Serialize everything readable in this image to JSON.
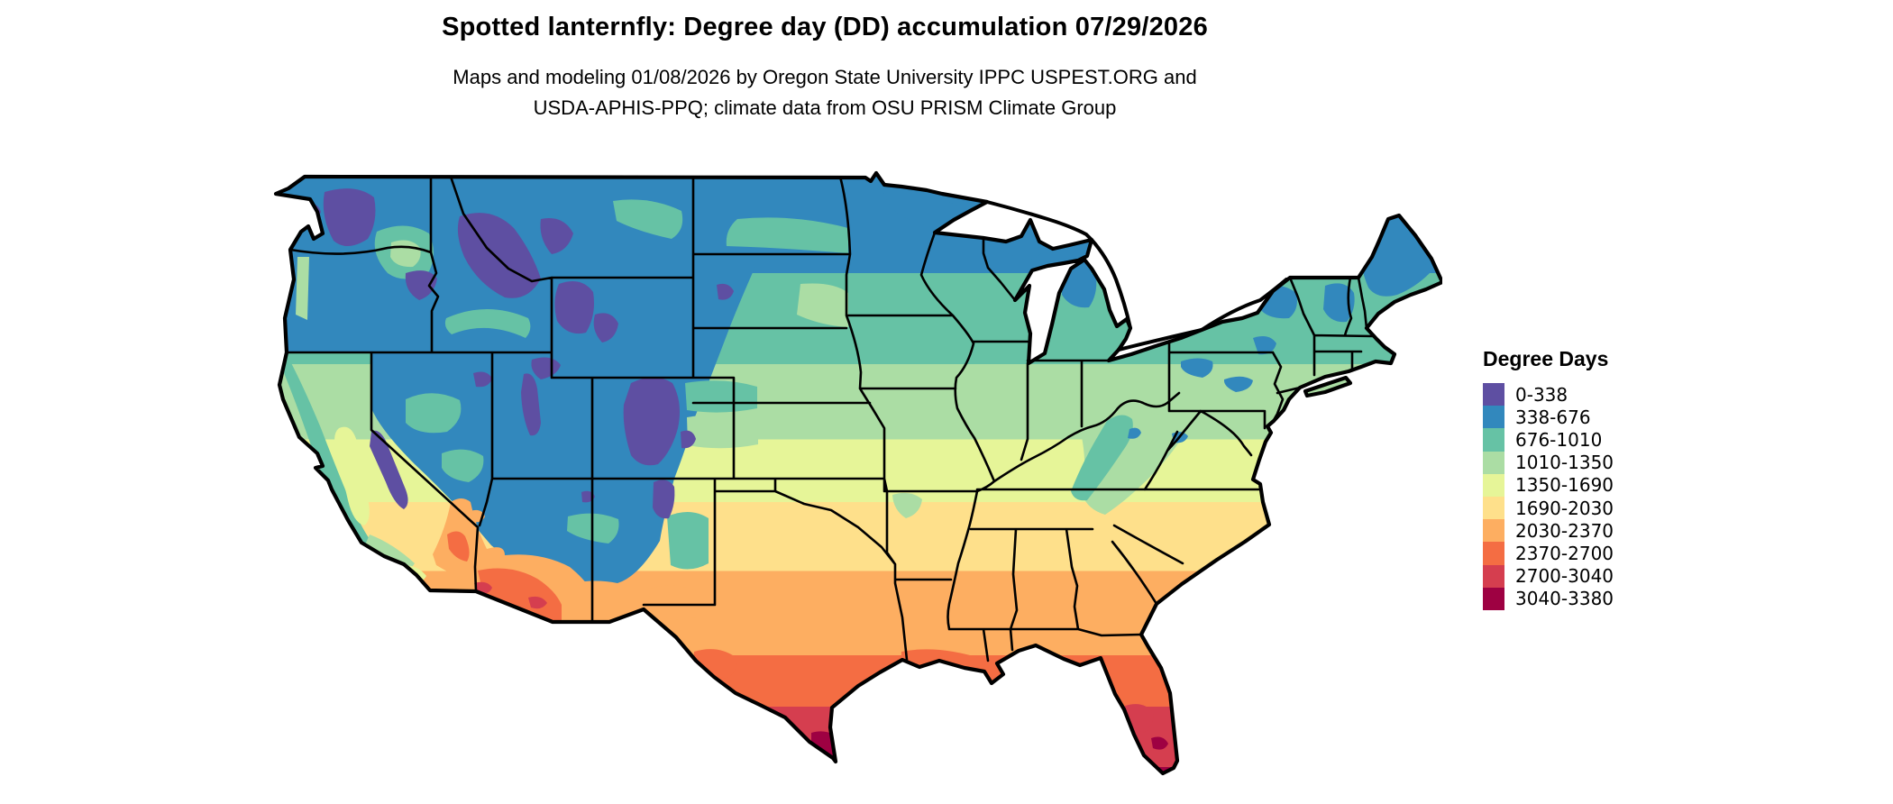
{
  "header": {
    "title": "Spotted lanternfly: Degree day (DD) accumulation 07/29/2026",
    "subtitle_line1": "Maps and modeling 01/08/2026 by Oregon State University IPPC USPEST.ORG and",
    "subtitle_line2": "USDA-APHIS-PPQ; climate data from OSU PRISM Climate Group"
  },
  "legend": {
    "title": "Degree Days",
    "classes": [
      {
        "range": "0-338",
        "color": "#5e4fa2"
      },
      {
        "range": "338-676",
        "color": "#3288bd"
      },
      {
        "range": "676-1010",
        "color": "#66c2a5"
      },
      {
        "range": "1010-1350",
        "color": "#abdda4"
      },
      {
        "range": "1350-1690",
        "color": "#e6f598"
      },
      {
        "range": "1690-2030",
        "color": "#fee08b"
      },
      {
        "range": "2030-2370",
        "color": "#fdae61"
      },
      {
        "range": "2370-2700",
        "color": "#f46d43"
      },
      {
        "range": "2700-3040",
        "color": "#d53e4f"
      },
      {
        "range": "3040-3380",
        "color": "#9e0142"
      }
    ]
  },
  "map": {
    "region": "Conterminous United States",
    "type": "classed raster choropleth with state borders",
    "border_color": "#000000",
    "water_color": "#ffffff"
  },
  "chart_data": {
    "type": "heatmap",
    "subtype": "choropleth-map",
    "title": "Spotted lanternfly: Degree day (DD) accumulation 07/29/2026",
    "legend_title": "Degree Days",
    "legend_position": "right",
    "unit": "accumulated degree days (DD)",
    "classes": [
      "0-338",
      "338-676",
      "676-1010",
      "1010-1350",
      "1350-1690",
      "1690-2030",
      "2030-2370",
      "2370-2700",
      "2700-3040",
      "3040-3380"
    ],
    "class_colors": [
      "#5e4fa2",
      "#3288bd",
      "#66c2a5",
      "#abdda4",
      "#e6f598",
      "#fee08b",
      "#fdae61",
      "#f46d43",
      "#d53e4f",
      "#9e0142"
    ],
    "pattern": "DD accumulation increases from north to south: 0-676 DD (purple/blue) across the northern tier, Cascades, Sierra Nevada and Rockies; 676-1690 DD (teal/green) across the Midwest, Northeast and Appalachians; 1690-2370 DD (yellow/orange) across the central-southern plains and Southeast; 2370-3380 DD (red to maroon) in the desert Southwest, south Texas and south Florida"
  }
}
